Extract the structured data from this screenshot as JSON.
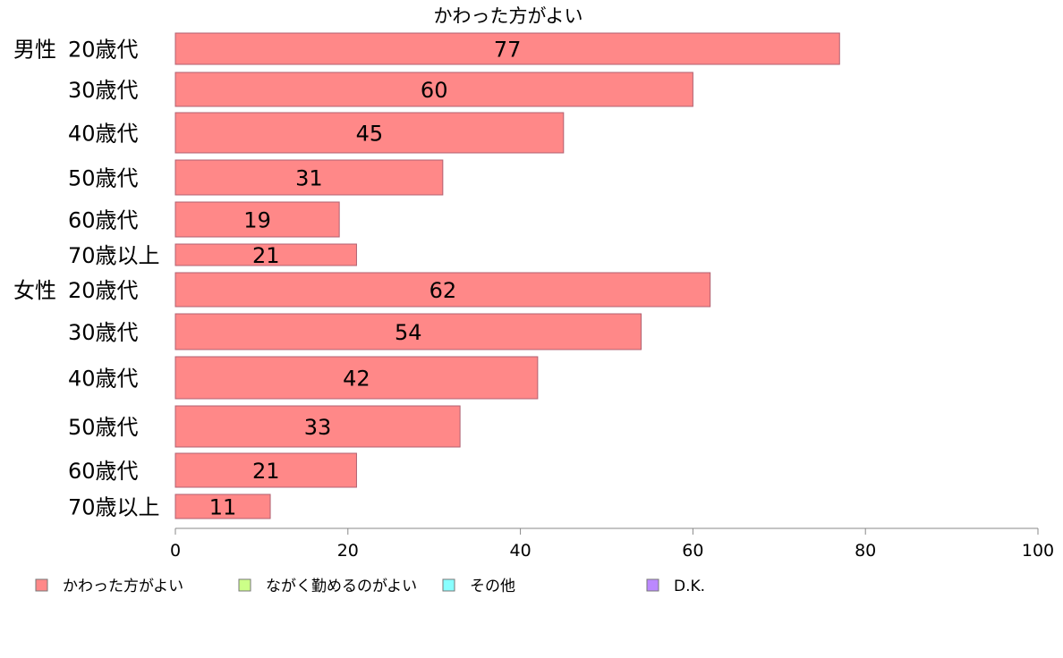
{
  "chart_data": {
    "type": "bar",
    "orientation": "horizontal",
    "title": "かわった方がよい",
    "groups": [
      {
        "label": "男性",
        "categories": [
          "20歳代",
          "30歳代",
          "40歳代",
          "50歳代",
          "60歳代",
          "70歳以上"
        ],
        "values": [
          77,
          60,
          45,
          31,
          19,
          21
        ]
      },
      {
        "label": "女性",
        "categories": [
          "20歳代",
          "30歳代",
          "40歳代",
          "50歳代",
          "60歳代",
          "70歳以上"
        ],
        "values": [
          62,
          54,
          42,
          33,
          21,
          11
        ]
      }
    ],
    "series_name": "かわった方がよい",
    "bar_color": "#ff8888",
    "bar_stroke": "#b06070",
    "xlim": [
      0,
      100
    ],
    "xticks": [
      0,
      20,
      40,
      60,
      80,
      100
    ],
    "grid": false,
    "legend_position": "bottom",
    "legend": [
      {
        "label": "かわった方がよい",
        "color": "#ff8888"
      },
      {
        "label": "ながく勤めるのがよい",
        "color": "#ccff88"
      },
      {
        "label": "その他",
        "color": "#88ffff"
      },
      {
        "label": "D.K.",
        "color": "#bb88ff"
      }
    ]
  }
}
